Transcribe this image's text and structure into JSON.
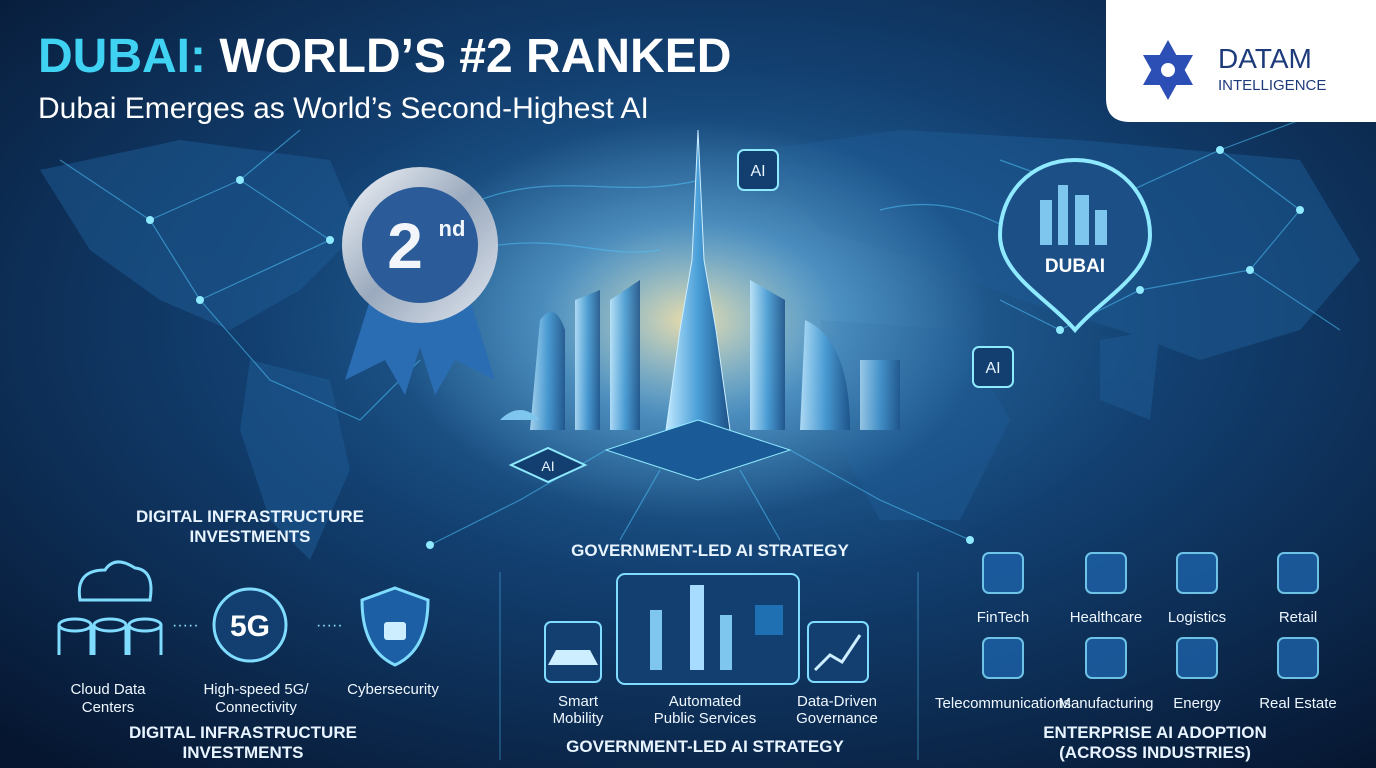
{
  "header": {
    "title_highlight": "DUBAI:",
    "title_rest": "WORLD’S #2 RANKED",
    "subtitle": "Dubai Emerges as World’s Second-Highest AI"
  },
  "logo": {
    "name": "DATAM",
    "tagline": "INTELLIGENCE"
  },
  "hero": {
    "rank": "2",
    "rank_suffix": "nd",
    "ai_badges": [
      "AI",
      "AI",
      "AI"
    ],
    "pin_label": "DUBAI"
  },
  "infrastructure": {
    "heading_top": [
      "DIGITAL INFRASTRUCTURE",
      "INVESTMENTS"
    ],
    "items": [
      {
        "label": [
          "Cloud Data",
          "Centers"
        ]
      },
      {
        "icon_text": "5G",
        "label": [
          "High-speed 5G/",
          "Connectivity"
        ]
      },
      {
        "label": [
          "Cybersecurity"
        ]
      }
    ],
    "heading_bottom": [
      "DIGITAL INFRASTRUCTURE",
      "INVESTMENTS"
    ]
  },
  "government": {
    "heading_top": "GOVERNMENT-LED AI STRATEGY",
    "items": [
      {
        "label": [
          "Smart",
          "Mobility"
        ]
      },
      {
        "label": [
          "Automated",
          "Public Services"
        ]
      },
      {
        "label": [
          "Data-Driven",
          "Governance"
        ]
      }
    ],
    "heading_bottom": "GOVERNMENT-LED AI STRATEGY"
  },
  "enterprise": {
    "industries": [
      "FinTech",
      "Healthcare",
      "Logistics",
      "Retail",
      "Telecommunications",
      "Manufacturing",
      "Energy",
      "Real Estate"
    ],
    "heading": [
      "ENTERPRISE AI ADOPTION",
      "(ACROSS INDUSTRIES)"
    ]
  }
}
